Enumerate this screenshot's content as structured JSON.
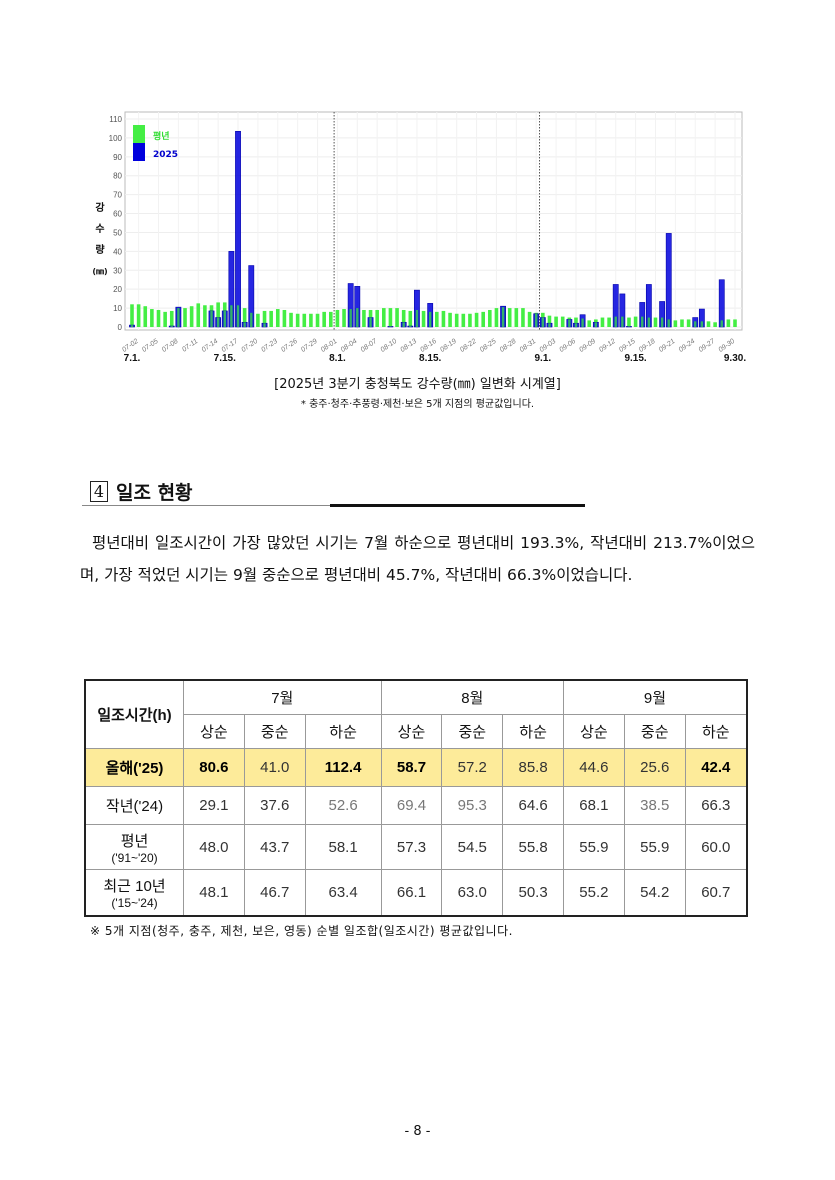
{
  "chart_data": {
    "type": "bar",
    "ylabel": [
      "강",
      "수",
      "량",
      "(㎜)"
    ],
    "ylim": [
      0,
      110
    ],
    "yticks": [
      0,
      10,
      20,
      30,
      40,
      50,
      60,
      70,
      80,
      90,
      100,
      110
    ],
    "grid": true,
    "legend_position": "top-left",
    "x_start": "07-01",
    "x_tick_labels": [
      "07-02",
      "07-05",
      "07-08",
      "07-11",
      "07-14",
      "07-17",
      "07-20",
      "07-23",
      "07-26",
      "07-29",
      "08-01",
      "08-04",
      "08-07",
      "08-10",
      "08-13",
      "08-16",
      "08-19",
      "08-22",
      "08-25",
      "08-28",
      "08-31",
      "09-03",
      "09-06",
      "09-09",
      "09-12",
      "09-15",
      "09-18",
      "09-21",
      "09-24",
      "09-27",
      "09-30"
    ],
    "major_labels": [
      "7.1.",
      "7.15.",
      "8.1.",
      "8.15.",
      "9.1.",
      "9.15.",
      "9.30."
    ],
    "series": [
      {
        "name": "평년",
        "color": "#44ee44",
        "values": [
          12,
          12,
          11,
          9.5,
          9,
          8,
          8.5,
          10,
          10,
          11,
          12.5,
          11.5,
          11.5,
          13,
          13,
          11.5,
          11.5,
          10,
          7.5,
          7,
          8.5,
          8.5,
          9.5,
          9,
          7.5,
          7,
          7,
          7,
          7,
          8,
          8,
          9,
          9.5,
          9.5,
          10,
          9,
          9,
          9,
          10,
          10,
          10,
          9,
          8.5,
          9,
          8.5,
          8,
          8,
          8.5,
          7.5,
          7,
          7,
          7,
          7.5,
          8,
          9,
          10,
          10.5,
          10,
          10,
          10,
          8,
          7.5,
          7.5,
          6,
          5.5,
          5.5,
          5,
          5,
          4.5,
          3.5,
          4,
          5,
          5,
          5.5,
          5.5,
          5,
          5.5,
          5.5,
          5,
          5,
          5,
          4,
          3.5,
          4,
          4,
          3,
          3,
          3,
          2.5,
          3.5,
          4,
          4
        ]
      },
      {
        "name": "2025",
        "color": "#0000dd",
        "values": [
          1,
          0,
          0,
          0,
          0,
          0,
          0.5,
          10.5,
          0,
          0,
          0,
          0,
          8.5,
          5,
          8.5,
          40,
          103.5,
          2.5,
          32.5,
          0,
          2,
          0,
          0,
          0,
          0,
          0,
          0,
          0,
          0,
          0,
          0,
          0,
          0,
          23,
          21.5,
          0,
          5,
          0,
          0,
          0.3,
          0,
          2.5,
          0.5,
          19.5,
          0,
          12.5,
          0,
          0,
          0,
          0,
          0,
          0,
          0,
          0,
          0,
          0,
          11,
          0,
          0,
          0,
          0,
          7,
          5,
          2,
          0,
          0,
          4,
          2,
          6.5,
          0,
          2.5,
          0,
          0,
          22.5,
          17.5,
          0.3,
          0,
          13,
          22.5,
          0,
          13.5,
          49.5,
          0,
          0,
          0,
          5,
          9.5,
          0,
          0,
          25,
          0,
          0
        ]
      }
    ]
  },
  "captions": {
    "title": "[2025년 3분기 충청북도 강수량(㎜) 일변화 시계열]",
    "note": "* 충주·청주·추풍령·제천·보은 5개 지점의 평균값입니다."
  },
  "section": {
    "number": "4",
    "title": "일조 현황",
    "paragraph": "평년대비 일조시간이 가장 많았던 시기는 7월 하순으로 평년대비 193.3%, 작년대비 213.7%이었으며, 가장 적었던 시기는 9월 중순으로 평년대비 45.7%, 작년대비 66.3%이었습니다."
  },
  "table": {
    "corner": "일조시간(h)",
    "months": [
      "7월",
      "8월",
      "9월"
    ],
    "periods": [
      "상순",
      "중순",
      "하순",
      "상순",
      "중순",
      "하순",
      "상순",
      "중순",
      "하순"
    ],
    "rows": [
      {
        "label": "올해('25)",
        "sub": "",
        "highlight": "#fdeb9a",
        "cells": [
          {
            "v": "80.6",
            "s": "bold"
          },
          {
            "v": "41.0",
            "s": "plain"
          },
          {
            "v": "112.4",
            "s": "bold"
          },
          {
            "v": "58.7",
            "s": "bold"
          },
          {
            "v": "57.2",
            "s": "plain"
          },
          {
            "v": "85.8",
            "s": "plain"
          },
          {
            "v": "44.6",
            "s": "plain"
          },
          {
            "v": "25.6",
            "s": "plain"
          },
          {
            "v": "42.4",
            "s": "bold"
          }
        ]
      },
      {
        "label": "작년('24)",
        "sub": "",
        "cells": [
          {
            "v": "29.1",
            "s": "plain"
          },
          {
            "v": "37.6",
            "s": "plain"
          },
          {
            "v": "52.6",
            "s": "grey"
          },
          {
            "v": "69.4",
            "s": "grey"
          },
          {
            "v": "95.3",
            "s": "grey"
          },
          {
            "v": "64.6",
            "s": "plain"
          },
          {
            "v": "68.1",
            "s": "plain"
          },
          {
            "v": "38.5",
            "s": "grey"
          },
          {
            "v": "66.3",
            "s": "plain"
          }
        ]
      },
      {
        "label": "평년",
        "sub": "('91~'20)",
        "cells": [
          {
            "v": "48.0",
            "s": "plain"
          },
          {
            "v": "43.7",
            "s": "plain"
          },
          {
            "v": "58.1",
            "s": "plain"
          },
          {
            "v": "57.3",
            "s": "plain"
          },
          {
            "v": "54.5",
            "s": "plain"
          },
          {
            "v": "55.8",
            "s": "plain"
          },
          {
            "v": "55.9",
            "s": "plain"
          },
          {
            "v": "55.9",
            "s": "plain"
          },
          {
            "v": "60.0",
            "s": "plain"
          }
        ]
      },
      {
        "label": "최근 10년",
        "sub": "('15~'24)",
        "cells": [
          {
            "v": "48.1",
            "s": "plain"
          },
          {
            "v": "46.7",
            "s": "plain"
          },
          {
            "v": "63.4",
            "s": "plain"
          },
          {
            "v": "66.1",
            "s": "plain"
          },
          {
            "v": "63.0",
            "s": "plain"
          },
          {
            "v": "50.3",
            "s": "plain"
          },
          {
            "v": "55.2",
            "s": "plain"
          },
          {
            "v": "54.2",
            "s": "plain"
          },
          {
            "v": "60.7",
            "s": "plain"
          }
        ]
      }
    ],
    "footnote": "※ 5개 지점(청주, 충주, 제천, 보은, 영동) 순별 일조합(일조시간) 평균값입니다."
  },
  "page_number": "- 8 -"
}
